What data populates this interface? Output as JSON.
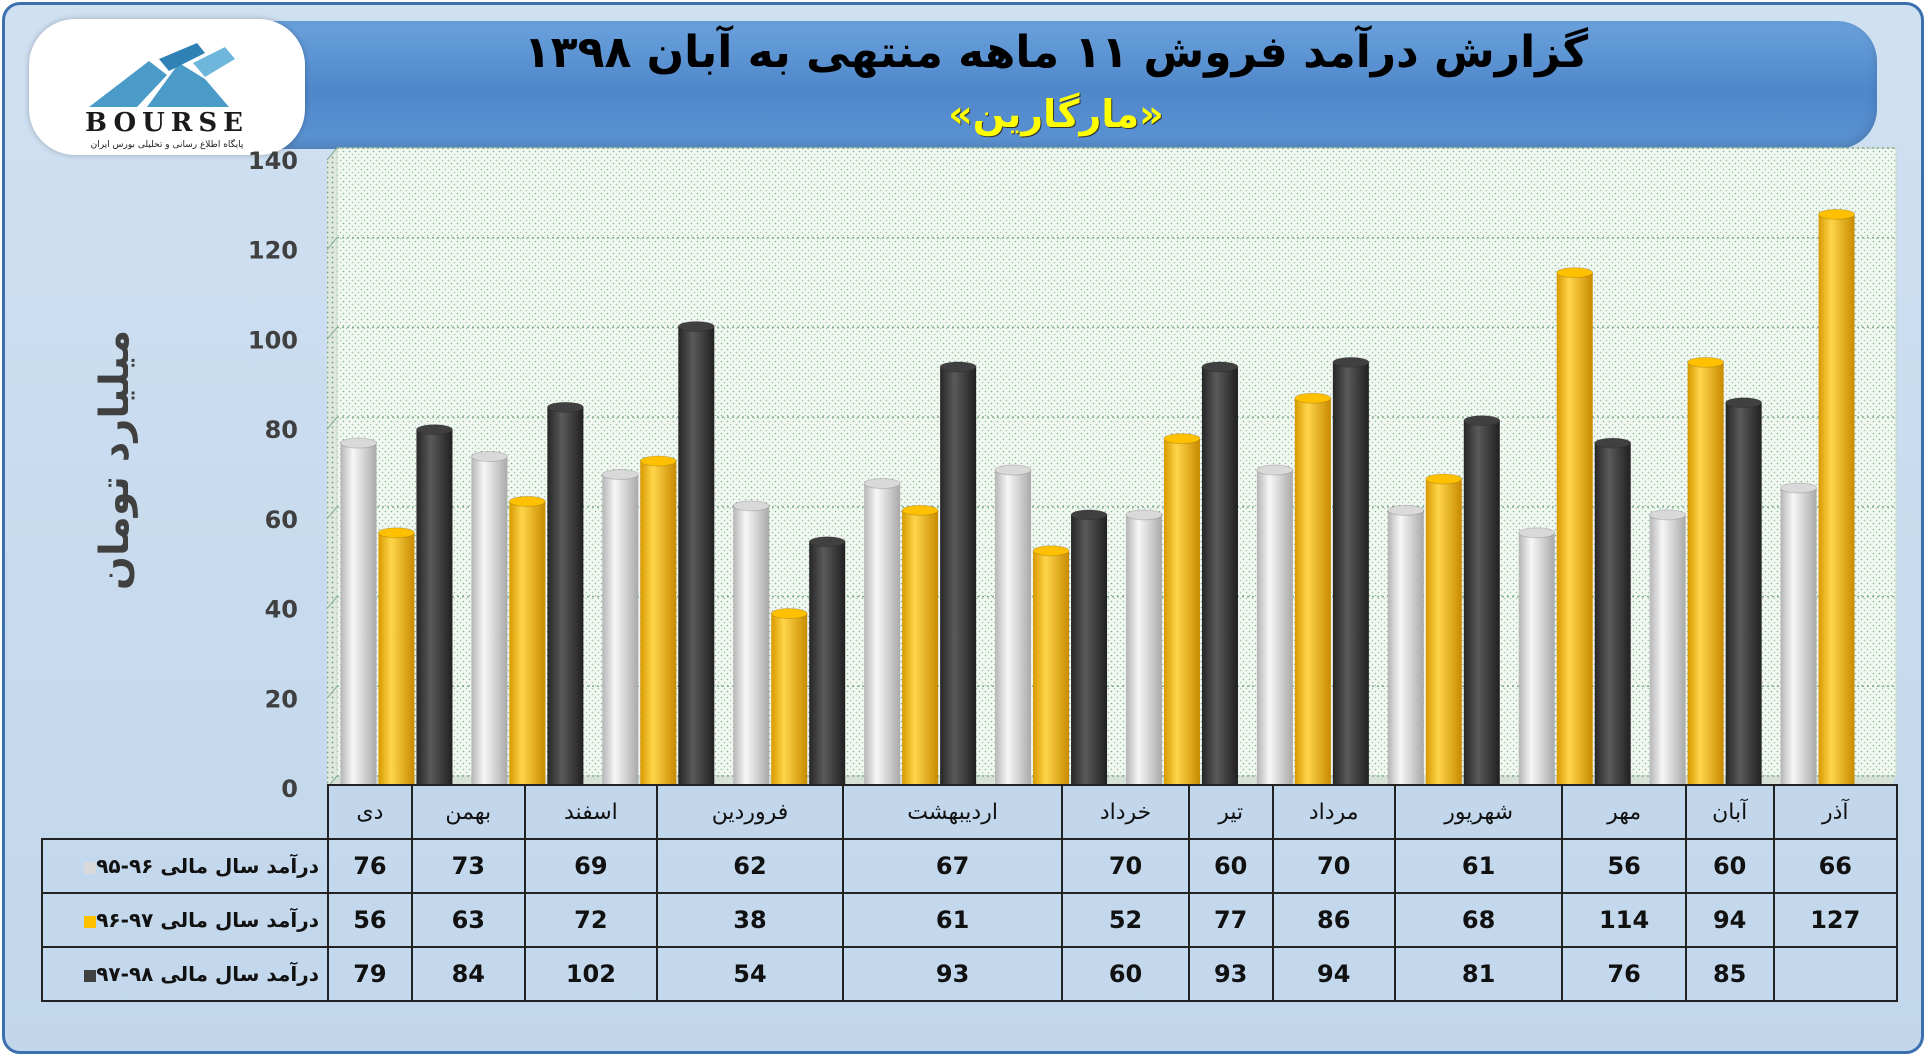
{
  "header": {
    "title": "گزارش درآمد فروش ۱۱ ماهه منتهی به آبان ۱۳۹۸",
    "subtitle": "«مارگارین»",
    "logo_text": "BOURSE",
    "logo_caption": "پایگاه اطلاع رسانی و تحلیلی بورس ایران"
  },
  "colors": {
    "series1": "#d9d9d9",
    "series2": "#ffc000",
    "series3": "#404040",
    "banner": "#5b93d3",
    "background": "#c2d7ec"
  },
  "chart_data": {
    "type": "bar",
    "ylabel": "میلیارد تومان",
    "ylim": [
      0,
      140
    ],
    "yticks": [
      0,
      20,
      40,
      60,
      80,
      100,
      120,
      140
    ],
    "grid": true,
    "legend": "table-left",
    "categories": [
      "دی",
      "بهمن",
      "اسفند",
      "فروردین",
      "اردیبهشت",
      "خرداد",
      "تیر",
      "مرداد",
      "شهریور",
      "مهر",
      "آبان",
      "آذر"
    ],
    "series": [
      {
        "name": "درآمد سال مالی ۹۶-۹۵",
        "values": [
          76,
          73,
          69,
          62,
          67,
          70,
          60,
          70,
          61,
          56,
          60,
          66
        ]
      },
      {
        "name": "درآمد سال مالی ۹۷-۹۶",
        "values": [
          56,
          63,
          72,
          38,
          61,
          52,
          77,
          86,
          68,
          114,
          94,
          127
        ]
      },
      {
        "name": "درآمد سال مالی ۹۸-۹۷",
        "values": [
          79,
          84,
          102,
          54,
          93,
          60,
          93,
          94,
          81,
          76,
          85,
          null
        ]
      }
    ]
  }
}
